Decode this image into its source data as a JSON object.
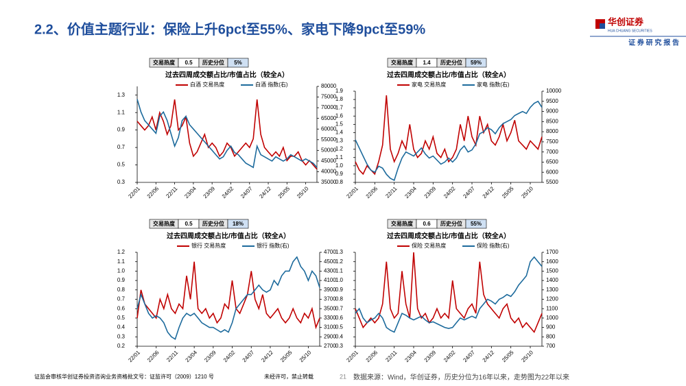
{
  "header": {
    "title": "2.2、价值主题行业：保险上升6pct至55%、家电下降9pct至59%",
    "logo": "华创证券",
    "logo_en": "HUA CHUANG SECURITIES",
    "tagline": "证 券 研 究 报 告"
  },
  "footer": {
    "license": "证监会审核华创证券投资咨询业务资格批文号：证监许可（2009）1210 号",
    "notice": "未经许可，禁止转载",
    "page": "21",
    "source": "数据来源：Wind，华创证券，历史分位为16年以来，走势图为22年以来"
  },
  "chart_data": [
    {
      "type": "line",
      "title": "过去四周成交额占比/市值占比（较全A）",
      "info": {
        "labels": [
          "交易热度",
          "历史分位"
        ],
        "heat": 0.5,
        "percentile": "5%"
      },
      "categories": [
        "22/01",
        null,
        null,
        null,
        null,
        "22/06",
        null,
        null,
        null,
        null,
        "22/11",
        null,
        null,
        null,
        null,
        "23/04",
        null,
        null,
        null,
        null,
        "23/09",
        null,
        null,
        null,
        null,
        "24/02",
        null,
        null,
        null,
        null,
        "24/07",
        null,
        null,
        null,
        null,
        "24/12",
        null,
        null,
        null,
        null,
        "25/05",
        null,
        null,
        null,
        null,
        "25/10",
        null,
        null,
        null
      ],
      "series": [
        {
          "name": "白酒 交易热度",
          "color": "#c00000",
          "axis": "y",
          "values": [
            1.0,
            0.95,
            0.9,
            0.95,
            1.05,
            0.9,
            1.1,
            1.0,
            0.85,
            0.95,
            1.25,
            0.9,
            0.95,
            1.05,
            0.75,
            0.6,
            0.65,
            0.75,
            0.85,
            0.7,
            0.75,
            0.7,
            0.6,
            0.65,
            0.75,
            0.7,
            0.6,
            0.65,
            0.7,
            0.75,
            0.7,
            0.8,
            1.25,
            0.85,
            0.7,
            0.65,
            0.6,
            0.65,
            0.6,
            0.7,
            0.55,
            0.6,
            0.6,
            0.65,
            0.55,
            0.5,
            0.55,
            0.5,
            0.45
          ]
        },
        {
          "name": "白酒 指数(右)",
          "color": "#1c6a9c",
          "axis": "y2",
          "values": [
            74000,
            68000,
            64000,
            62000,
            60000,
            58000,
            66000,
            68000,
            64000,
            58000,
            52000,
            56000,
            64000,
            66000,
            62000,
            60000,
            58000,
            56000,
            54000,
            52000,
            50000,
            48000,
            46000,
            47000,
            50000,
            52000,
            49000,
            48000,
            46000,
            44000,
            43000,
            42000,
            52000,
            48000,
            47000,
            46000,
            45000,
            47000,
            46000,
            45000,
            46000,
            48000,
            47000,
            46000,
            45000,
            46000,
            45000,
            44000,
            42000
          ]
        }
      ],
      "ylim": [
        0.3,
        1.4
      ],
      "yticks": [
        0.3,
        0.5,
        0.7,
        0.9,
        1.1,
        1.3
      ],
      "y2lim": [
        35000,
        80000
      ],
      "y2ticks": [
        35000,
        40000,
        45000,
        50000,
        55000,
        60000,
        65000,
        70000,
        75000,
        80000
      ]
    },
    {
      "type": "line",
      "title": "过去四周成交额占比/市值占比（较全A）",
      "info": {
        "labels": [
          "交易热度",
          "历史分位"
        ],
        "heat": 1.4,
        "percentile": "59%"
      },
      "categories": [
        "22/01",
        null,
        null,
        null,
        null,
        "22/06",
        null,
        null,
        null,
        null,
        "22/11",
        null,
        null,
        null,
        null,
        "23/04",
        null,
        null,
        null,
        null,
        "23/09",
        null,
        null,
        null,
        null,
        "24/02",
        null,
        null,
        null,
        null,
        "24/07",
        null,
        null,
        null,
        null,
        "24/12",
        null,
        null,
        null,
        null,
        "25/05",
        null,
        null,
        null,
        null,
        "25/10",
        null,
        null,
        null
      ],
      "series": [
        {
          "name": "家电 交易热度",
          "color": "#c00000",
          "axis": "y",
          "values": [
            1.05,
            0.95,
            0.9,
            1.0,
            0.95,
            0.9,
            1.05,
            1.25,
            1.85,
            1.2,
            1.05,
            1.15,
            1.3,
            1.2,
            1.5,
            1.2,
            1.1,
            1.15,
            1.3,
            1.2,
            1.35,
            1.15,
            1.1,
            1.2,
            1.05,
            1.1,
            1.2,
            1.5,
            1.3,
            1.6,
            1.35,
            1.25,
            1.6,
            1.4,
            1.5,
            1.3,
            1.25,
            1.35,
            1.5,
            1.3,
            1.4,
            1.55,
            1.3,
            1.25,
            1.2,
            1.3,
            1.25,
            1.2,
            1.35
          ]
        },
        {
          "name": "家电 指数(右)",
          "color": "#1c6a9c",
          "axis": "y2",
          "values": [
            7600,
            7200,
            6800,
            6400,
            6100,
            6000,
            6300,
            6200,
            5900,
            5700,
            5600,
            6200,
            6700,
            7000,
            6900,
            6800,
            7000,
            7200,
            6900,
            6700,
            6800,
            6600,
            6400,
            6500,
            6700,
            6500,
            6700,
            7100,
            7300,
            7000,
            7100,
            7400,
            7900,
            8000,
            8200,
            8100,
            7900,
            8200,
            8400,
            8500,
            8600,
            8800,
            8900,
            9000,
            8900,
            9200,
            9400,
            9500,
            9200
          ]
        }
      ],
      "ylim": [
        0.8,
        1.9
      ],
      "yticks": [
        {
          "value": 0.8,
          "label": "0.8"
        },
        {
          "value": 0.9,
          "label": "0.9"
        },
        {
          "value": 1,
          "label": "1.0"
        },
        1.1,
        1.2,
        1.3,
        1.4,
        1.5,
        1.6,
        1.7,
        1.8,
        1.9
      ],
      "y2lim": [
        5500,
        10000
      ],
      "y2ticks": [
        5500,
        6000,
        6500,
        7000,
        7500,
        8000,
        8500,
        9000,
        9500,
        10000
      ]
    },
    {
      "type": "line",
      "title": "过去四周成交额占比/市值占比（较全A）",
      "info": {
        "labels": [
          "交易热度",
          "历史分位"
        ],
        "heat": 0.5,
        "percentile": "18%"
      },
      "categories": [
        "22/01",
        null,
        null,
        null,
        null,
        "22/06",
        null,
        null,
        null,
        null,
        "22/11",
        null,
        null,
        null,
        null,
        "23/04",
        null,
        null,
        null,
        null,
        "23/09",
        null,
        null,
        null,
        null,
        "24/02",
        null,
        null,
        null,
        null,
        "24/07",
        null,
        null,
        null,
        null,
        "24/12",
        null,
        null,
        null,
        null,
        "25/05",
        null,
        null,
        null,
        null,
        "25/10",
        null,
        null,
        null
      ],
      "series": [
        {
          "name": "银行 交易热度",
          "color": "#c00000",
          "axis": "y",
          "values": [
            0.5,
            0.8,
            0.65,
            0.6,
            0.55,
            0.5,
            0.7,
            0.6,
            0.75,
            0.6,
            0.55,
            0.65,
            0.6,
            0.95,
            0.7,
            1.1,
            0.6,
            0.55,
            0.6,
            0.5,
            0.55,
            0.45,
            0.5,
            0.65,
            0.6,
            0.9,
            0.6,
            0.55,
            0.65,
            0.75,
            1.0,
            0.7,
            0.6,
            0.75,
            0.55,
            0.5,
            0.55,
            0.6,
            0.5,
            0.45,
            0.5,
            0.6,
            0.5,
            0.45,
            0.55,
            0.5,
            0.6,
            0.4,
            0.5
          ]
        },
        {
          "name": "银行 指数(右)",
          "color": "#1c6a9c",
          "axis": "y2",
          "values": [
            3500,
            3800,
            3600,
            3400,
            3300,
            3350,
            3300,
            3200,
            3000,
            2900,
            2850,
            3100,
            3300,
            3400,
            3350,
            3400,
            3300,
            3200,
            3150,
            3100,
            3100,
            3050,
            3000,
            3050,
            3000,
            3200,
            3500,
            3600,
            3700,
            3800,
            3800,
            3900,
            4000,
            3900,
            3850,
            3900,
            4100,
            4000,
            4200,
            4300,
            4300,
            4500,
            4600,
            4400,
            4300,
            4100,
            4300,
            4200,
            3950
          ]
        }
      ],
      "ylim": [
        0.2,
        1.2
      ],
      "yticks": [
        0.2,
        0.3,
        0.4,
        0.5,
        0.6,
        0.7,
        0.8,
        0.9,
        {
          "value": 1,
          "label": "1.0"
        },
        1.1,
        1.2
      ],
      "y2lim": [
        2700,
        4700
      ],
      "y2ticks": [
        2700,
        2900,
        3100,
        3300,
        3500,
        3700,
        3900,
        4100,
        4300,
        4500,
        4700
      ]
    },
    {
      "type": "line",
      "title": "过去四周成交额占比/市值占比（较全A）",
      "info": {
        "labels": [
          "交易热度",
          "历史分位"
        ],
        "heat": 0.6,
        "percentile": "55%"
      },
      "categories": [
        "22/01",
        null,
        null,
        null,
        null,
        "22/06",
        null,
        null,
        null,
        null,
        "22/11",
        null,
        null,
        null,
        null,
        "23/04",
        null,
        null,
        null,
        null,
        "23/09",
        null,
        null,
        null,
        null,
        "24/02",
        null,
        null,
        null,
        null,
        "24/07",
        null,
        null,
        null,
        null,
        "24/12",
        null,
        null,
        null,
        null,
        "25/05",
        null,
        null,
        null,
        null,
        "25/10",
        null,
        null,
        null
      ],
      "series": [
        {
          "name": "保险 交易热度",
          "color": "#c00000",
          "axis": "y",
          "values": [
            0.7,
            0.6,
            0.5,
            0.55,
            0.6,
            0.55,
            0.6,
            0.75,
            1.2,
            0.7,
            0.6,
            0.65,
            1.1,
            0.75,
            0.6,
            1.3,
            0.7,
            0.6,
            0.65,
            0.55,
            0.6,
            0.7,
            0.6,
            0.65,
            0.6,
            1.0,
            0.7,
            0.65,
            0.6,
            0.7,
            0.75,
            0.65,
            1.2,
            0.85,
            0.75,
            0.7,
            0.65,
            0.6,
            0.7,
            0.75,
            0.6,
            0.55,
            0.6,
            0.5,
            0.55,
            0.5,
            0.45,
            0.55,
            0.65
          ]
        },
        {
          "name": "保险 指数(右)",
          "color": "#1c6a9c",
          "axis": "y2",
          "values": [
            1050,
            1100,
            1000,
            950,
            980,
            1000,
            1050,
            1000,
            900,
            870,
            850,
            950,
            1050,
            1030,
            1000,
            980,
            1000,
            1020,
            980,
            950,
            960,
            940,
            920,
            900,
            890,
            900,
            950,
            1000,
            980,
            1000,
            1020,
            1000,
            1100,
            1150,
            1200,
            1180,
            1150,
            1200,
            1220,
            1250,
            1230,
            1280,
            1350,
            1400,
            1450,
            1600,
            1650,
            1600,
            1550
          ]
        }
      ],
      "ylim": [
        0.3,
        1.3
      ],
      "yticks": [
        0.3,
        0.4,
        0.5,
        0.6,
        0.7,
        0.8,
        0.9,
        {
          "value": 1,
          "label": "1.0"
        },
        1.1,
        1.2,
        1.3
      ],
      "y2lim": [
        700,
        1700
      ],
      "y2ticks": [
        700,
        800,
        900,
        1000,
        1100,
        1200,
        1300,
        1400,
        1500,
        1600,
        1700
      ]
    }
  ]
}
